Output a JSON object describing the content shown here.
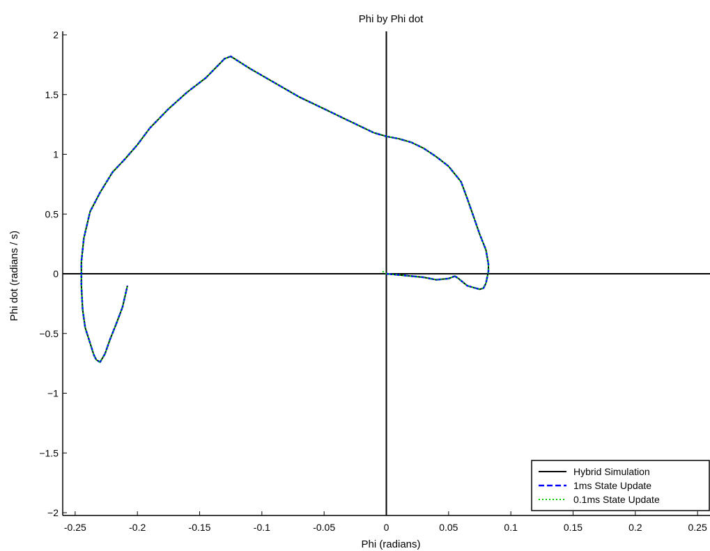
{
  "chart_data": {
    "type": "line",
    "title": "Phi by Phi dot",
    "xlabel": "Phi (radians)",
    "ylabel": "Phi dot (radians / s)",
    "xlim": [
      -0.26,
      0.26
    ],
    "ylim": [
      -2,
      2
    ],
    "xticks": [
      -0.25,
      -0.2,
      -0.15,
      -0.1,
      -0.05,
      0,
      0.05,
      0.1,
      0.15,
      0.2,
      0.25
    ],
    "xtick_labels": [
      "-0.25",
      "-0.2",
      "-0.15",
      "-0.1",
      "-0.05",
      "0",
      "0.05",
      "0.1",
      "0.15",
      "0.2",
      "0.25"
    ],
    "yticks": [
      2,
      1.5,
      1,
      0.5,
      0,
      -0.5,
      -1,
      -1.5,
      -2
    ],
    "ytick_labels": [
      "2",
      "1.5",
      "1",
      "0.5",
      "0",
      "−0.5",
      "−1",
      "−1.5",
      "−2"
    ],
    "reference_lines": {
      "x": 0,
      "y": 0
    },
    "legend_position": "bottom-right",
    "series": [
      {
        "name": "Hybrid Simulation",
        "color": "#000000",
        "style": "solid",
        "x": [
          0.0,
          0.01,
          0.02,
          0.03,
          0.04,
          0.05,
          0.055,
          0.058,
          0.065,
          0.075,
          0.078,
          0.08,
          0.082,
          0.082,
          0.08,
          0.075,
          0.07,
          0.065,
          0.06,
          0.05,
          0.04,
          0.03,
          0.02,
          0.01,
          0.0,
          -0.01,
          -0.02,
          -0.03,
          -0.05,
          -0.07,
          -0.09,
          -0.11,
          -0.125,
          -0.13,
          -0.145,
          -0.16,
          -0.175,
          -0.19,
          -0.2,
          -0.21,
          -0.22,
          -0.23,
          -0.238,
          -0.243,
          -0.245,
          -0.245,
          -0.244,
          -0.242,
          -0.238,
          -0.235,
          -0.233,
          -0.23,
          -0.226,
          -0.222,
          -0.217,
          -0.212,
          -0.208
        ],
        "y": [
          0.0,
          -0.01,
          -0.02,
          -0.03,
          -0.05,
          -0.04,
          -0.02,
          -0.04,
          -0.1,
          -0.13,
          -0.12,
          -0.08,
          0.02,
          0.08,
          0.2,
          0.33,
          0.48,
          0.63,
          0.77,
          0.9,
          0.98,
          1.05,
          1.1,
          1.13,
          1.15,
          1.18,
          1.23,
          1.28,
          1.38,
          1.48,
          1.6,
          1.72,
          1.82,
          1.8,
          1.64,
          1.52,
          1.38,
          1.22,
          1.08,
          0.96,
          0.85,
          0.68,
          0.52,
          0.3,
          0.1,
          -0.1,
          -0.3,
          -0.45,
          -0.58,
          -0.68,
          -0.72,
          -0.74,
          -0.67,
          -0.55,
          -0.42,
          -0.28,
          -0.1
        ]
      },
      {
        "name": "1ms State Update",
        "color": "#0000ff",
        "style": "dashed",
        "x": [
          0.0,
          0.01,
          0.02,
          0.03,
          0.04,
          0.05,
          0.055,
          0.058,
          0.065,
          0.075,
          0.078,
          0.08,
          0.082,
          0.082,
          0.08,
          0.075,
          0.07,
          0.065,
          0.06,
          0.05,
          0.04,
          0.03,
          0.02,
          0.01,
          0.0,
          -0.01,
          -0.02,
          -0.03,
          -0.05,
          -0.07,
          -0.09,
          -0.11,
          -0.125,
          -0.13,
          -0.145,
          -0.16,
          -0.175,
          -0.19,
          -0.2,
          -0.21,
          -0.22,
          -0.23,
          -0.238,
          -0.243,
          -0.245,
          -0.245,
          -0.244,
          -0.242,
          -0.238,
          -0.235,
          -0.233,
          -0.23,
          -0.226,
          -0.222,
          -0.217,
          -0.212,
          -0.208
        ],
        "y": [
          0.0,
          -0.01,
          -0.02,
          -0.03,
          -0.05,
          -0.04,
          -0.02,
          -0.04,
          -0.1,
          -0.13,
          -0.12,
          -0.08,
          0.02,
          0.08,
          0.2,
          0.33,
          0.48,
          0.63,
          0.77,
          0.9,
          0.98,
          1.05,
          1.1,
          1.13,
          1.15,
          1.18,
          1.23,
          1.28,
          1.38,
          1.48,
          1.6,
          1.72,
          1.82,
          1.8,
          1.64,
          1.52,
          1.38,
          1.22,
          1.08,
          0.96,
          0.85,
          0.68,
          0.52,
          0.3,
          0.1,
          -0.1,
          -0.3,
          -0.45,
          -0.58,
          -0.68,
          -0.72,
          -0.74,
          -0.67,
          -0.55,
          -0.42,
          -0.28,
          -0.1
        ]
      },
      {
        "name": "0.1ms State Update",
        "color": "#00cc00",
        "style": "dotted",
        "x": [
          -0.003,
          0.0,
          0.01,
          0.02,
          0.03,
          0.04,
          0.05,
          0.055,
          0.058,
          0.065,
          0.075,
          0.078,
          0.08,
          0.082,
          0.082,
          0.08,
          0.075,
          0.07,
          0.065,
          0.06,
          0.05,
          0.04,
          0.03,
          0.02,
          0.01,
          0.0,
          -0.01,
          -0.02,
          -0.03,
          -0.05,
          -0.07,
          -0.09,
          -0.11,
          -0.125,
          -0.13,
          -0.145,
          -0.16,
          -0.175,
          -0.19,
          -0.2,
          -0.21,
          -0.22,
          -0.23,
          -0.238,
          -0.243,
          -0.245,
          -0.245,
          -0.244,
          -0.242,
          -0.238,
          -0.235,
          -0.233,
          -0.23,
          -0.226,
          -0.222,
          -0.217,
          -0.212,
          -0.208
        ],
        "y": [
          0.02,
          0.0,
          -0.01,
          -0.02,
          -0.03,
          -0.05,
          -0.04,
          -0.02,
          -0.04,
          -0.1,
          -0.13,
          -0.12,
          -0.08,
          0.02,
          0.08,
          0.2,
          0.33,
          0.48,
          0.63,
          0.77,
          0.9,
          0.98,
          1.05,
          1.1,
          1.13,
          1.15,
          1.18,
          1.23,
          1.28,
          1.38,
          1.48,
          1.6,
          1.72,
          1.82,
          1.8,
          1.64,
          1.52,
          1.38,
          1.22,
          1.08,
          0.96,
          0.85,
          0.68,
          0.52,
          0.3,
          0.1,
          -0.1,
          -0.3,
          -0.45,
          -0.58,
          -0.68,
          -0.72,
          -0.74,
          -0.67,
          -0.55,
          -0.42,
          -0.28,
          -0.1
        ]
      }
    ]
  }
}
